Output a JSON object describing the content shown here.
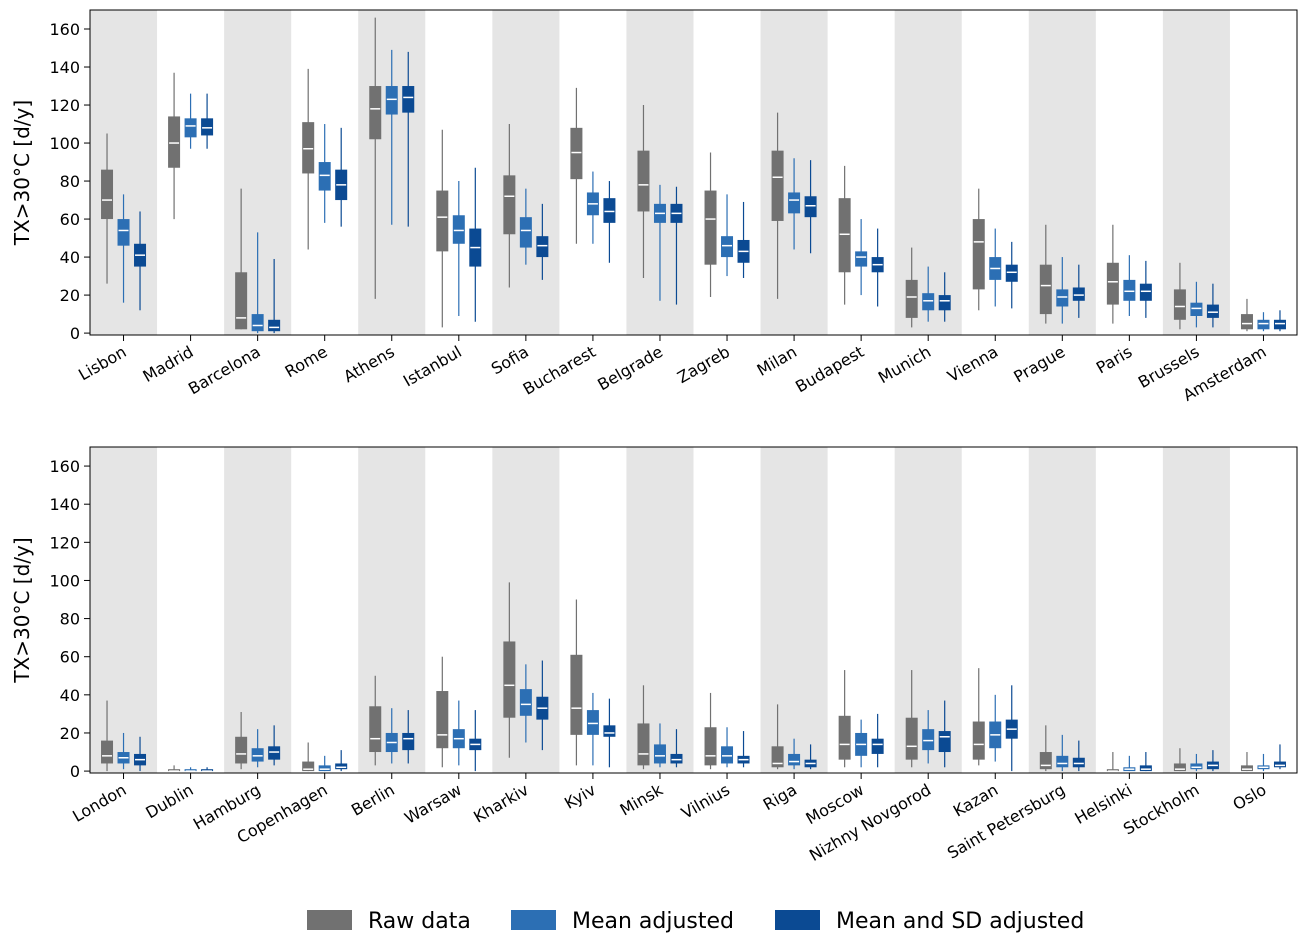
{
  "chart_data": [
    {
      "type": "box",
      "ylabel": "TX>30°C [d/y]",
      "ylim": [
        -1,
        170
      ],
      "yticks": [
        0,
        20,
        40,
        60,
        80,
        100,
        120,
        140,
        160
      ],
      "band_shading": "#e5e5e5",
      "categories": [
        "Lisbon",
        "Madrid",
        "Barcelona",
        "Rome",
        "Athens",
        "Istanbul",
        "Sofia",
        "Bucharest",
        "Belgrade",
        "Zagreb",
        "Milan",
        "Budapest",
        "Munich",
        "Vienna",
        "Prague",
        "Paris",
        "Brussels",
        "Amsterdam"
      ],
      "series": [
        {
          "name": "Raw data",
          "color": "#717171",
          "values": [
            [
              26,
              60,
              70,
              86,
              105
            ],
            [
              60,
              87,
              100,
              114,
              137
            ],
            [
              2,
              2,
              8,
              32,
              76
            ],
            [
              44,
              84,
              97,
              111,
              139
            ],
            [
              18,
              102,
              118,
              130,
              166
            ],
            [
              3,
              43,
              61,
              75,
              107
            ],
            [
              24,
              52,
              72,
              83,
              110
            ],
            [
              47,
              81,
              95,
              108,
              129
            ],
            [
              29,
              64,
              78,
              96,
              120
            ],
            [
              19,
              36,
              60,
              75,
              95
            ],
            [
              18,
              59,
              82,
              96,
              116
            ],
            [
              15,
              32,
              52,
              71,
              88
            ],
            [
              3,
              8,
              19,
              28,
              45
            ],
            [
              12,
              23,
              48,
              60,
              76
            ],
            [
              5,
              10,
              25,
              36,
              57
            ],
            [
              5,
              15,
              27,
              37,
              57
            ],
            [
              2,
              7,
              14,
              23,
              37
            ],
            [
              1,
              2,
              5,
              10,
              18
            ]
          ]
        },
        {
          "name": "Mean adjusted",
          "color": "#2c6fb4",
          "values": [
            [
              16,
              46,
              54,
              60,
              73
            ],
            [
              97,
              103,
              109,
              113,
              126
            ],
            [
              0,
              1,
              4,
              10,
              53
            ],
            [
              58,
              75,
              83,
              90,
              110
            ],
            [
              57,
              115,
              123,
              130,
              149
            ],
            [
              9,
              47,
              54,
              62,
              80
            ],
            [
              36,
              45,
              54,
              61,
              76
            ],
            [
              47,
              62,
              68,
              74,
              85
            ],
            [
              17,
              58,
              63,
              68,
              78
            ],
            [
              30,
              40,
              46,
              51,
              73
            ],
            [
              44,
              63,
              70,
              74,
              92
            ],
            [
              20,
              35,
              40,
              43,
              60
            ],
            [
              6,
              12,
              17,
              21,
              35
            ],
            [
              14,
              28,
              34,
              40,
              55
            ],
            [
              5,
              14,
              19,
              23,
              40
            ],
            [
              9,
              17,
              22,
              28,
              41
            ],
            [
              3,
              9,
              13,
              16,
              27
            ],
            [
              1,
              2,
              5,
              7,
              11
            ]
          ]
        },
        {
          "name": "Mean and SD adjusted",
          "color": "#0b4a93",
          "values": [
            [
              12,
              35,
              41,
              47,
              64
            ],
            [
              97,
              104,
              108,
              113,
              126
            ],
            [
              0,
              1,
              3,
              7,
              39
            ],
            [
              56,
              70,
              78,
              86,
              108
            ],
            [
              56,
              116,
              124,
              130,
              148
            ],
            [
              6,
              35,
              45,
              55,
              87
            ],
            [
              28,
              40,
              46,
              51,
              68
            ],
            [
              37,
              58,
              64,
              71,
              80
            ],
            [
              15,
              58,
              63,
              68,
              77
            ],
            [
              29,
              37,
              43,
              49,
              69
            ],
            [
              42,
              61,
              67,
              72,
              91
            ],
            [
              14,
              32,
              36,
              40,
              55
            ],
            [
              6,
              12,
              17,
              20,
              32
            ],
            [
              13,
              27,
              32,
              36,
              48
            ],
            [
              8,
              17,
              20,
              24,
              36
            ],
            [
              8,
              17,
              22,
              26,
              38
            ],
            [
              3,
              8,
              11,
              15,
              26
            ],
            [
              1,
              2,
              5,
              7,
              12
            ]
          ]
        }
      ]
    },
    {
      "type": "box",
      "ylabel": "TX>30°C [d/y]",
      "ylim": [
        -1,
        170
      ],
      "yticks": [
        0,
        20,
        40,
        60,
        80,
        100,
        120,
        140,
        160
      ],
      "band_shading": "#e5e5e5",
      "categories": [
        "London",
        "Dublin",
        "Hamburg",
        "Copenhagen",
        "Berlin",
        "Warsaw",
        "Kharkiv",
        "Kyiv",
        "Minsk",
        "Vilnius",
        "Riga",
        "Moscow",
        "Nizhny Novgorod",
        "Kazan",
        "Saint Petersburg",
        "Helsinki",
        "Stockholm",
        "Oslo"
      ],
      "series": [
        {
          "color": "#717171",
          "values": [
            [
              0,
              4,
              8,
              16,
              37
            ],
            [
              0,
              0,
              0,
              1,
              3
            ],
            [
              1,
              4,
              9,
              18,
              31
            ],
            [
              0,
              0,
              1,
              5,
              15
            ],
            [
              3,
              10,
              17,
              34,
              50
            ],
            [
              2,
              12,
              19,
              42,
              60
            ],
            [
              7,
              28,
              45,
              68,
              99
            ],
            [
              3,
              19,
              33,
              61,
              90
            ],
            [
              1,
              3,
              9,
              25,
              45
            ],
            [
              1,
              3,
              8,
              23,
              41
            ],
            [
              1,
              2,
              4,
              13,
              35
            ],
            [
              2,
              6,
              14,
              29,
              53
            ],
            [
              2,
              6,
              13,
              28,
              53
            ],
            [
              3,
              6,
              14,
              26,
              54
            ],
            [
              0,
              1,
              3,
              10,
              24
            ],
            [
              0,
              0,
              0,
              1,
              10
            ],
            [
              0,
              0,
              1,
              4,
              12
            ],
            [
              0,
              0,
              1,
              3,
              10
            ]
          ]
        },
        {
          "color": "#2c6fb4",
          "values": [
            [
              1,
              4,
              7,
              10,
              20
            ],
            [
              0,
              0,
              0,
              1,
              2
            ],
            [
              2,
              5,
              8,
              12,
              22
            ],
            [
              0,
              0,
              1,
              3,
              8
            ],
            [
              4,
              10,
              15,
              20,
              33
            ],
            [
              3,
              12,
              17,
              22,
              37
            ],
            [
              15,
              29,
              35,
              43,
              56
            ],
            [
              3,
              19,
              25,
              32,
              41
            ],
            [
              2,
              4,
              8,
              14,
              25
            ],
            [
              2,
              4,
              8,
              13,
              23
            ],
            [
              1,
              3,
              5,
              9,
              17
            ],
            [
              2,
              8,
              14,
              20,
              27
            ],
            [
              4,
              11,
              16,
              22,
              32
            ],
            [
              5,
              12,
              19,
              26,
              40
            ],
            [
              0,
              2,
              4,
              8,
              19
            ],
            [
              0,
              0,
              1,
              2,
              8
            ],
            [
              0,
              1,
              2,
              4,
              9
            ],
            [
              0,
              1,
              2,
              3,
              9
            ]
          ]
        },
        {
          "color": "#0b4a93",
          "values": [
            [
              0,
              3,
              6,
              9,
              18
            ],
            [
              0,
              0,
              0,
              1,
              2
            ],
            [
              3,
              6,
              10,
              13,
              24
            ],
            [
              0,
              1,
              2,
              4,
              11
            ],
            [
              4,
              11,
              17,
              20,
              32
            ],
            [
              0,
              11,
              14,
              17,
              32
            ],
            [
              11,
              27,
              33,
              39,
              58
            ],
            [
              2,
              18,
              20,
              24,
              38
            ],
            [
              2,
              4,
              6,
              9,
              22
            ],
            [
              2,
              4,
              6,
              8,
              21
            ],
            [
              1,
              2,
              4,
              6,
              14
            ],
            [
              2,
              9,
              14,
              17,
              30
            ],
            [
              2,
              10,
              18,
              21,
              37
            ],
            [
              0,
              17,
              22,
              27,
              45
            ],
            [
              0,
              2,
              4,
              7,
              16
            ],
            [
              0,
              0,
              1,
              3,
              10
            ],
            [
              0,
              1,
              3,
              5,
              11
            ],
            [
              1,
              2,
              3,
              5,
              14
            ]
          ]
        }
      ]
    }
  ]
}
